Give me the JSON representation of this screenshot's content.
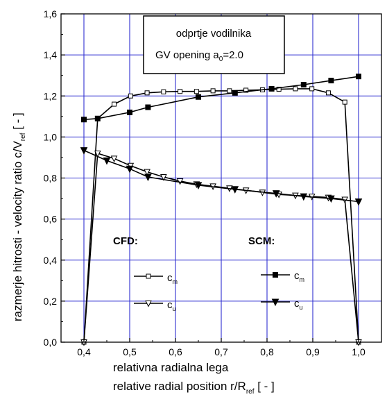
{
  "chart_data": {
    "type": "line",
    "title": "",
    "annotation": {
      "line1": "odprtje vodilnika",
      "line2": "GV opening a",
      "line2_sub": "0",
      "line2_tail": "=2.0"
    },
    "xlabel": {
      "line1": "relativna radialna lega",
      "line2": "relative radial position   r/R",
      "line2_sub": "ref",
      "line2_tail": "   [ - ]"
    },
    "ylabel": {
      "main": "razmerje hitrosti - velocity ratio   c/V",
      "sub": "ref",
      "tail": "   [ - ]"
    },
    "xlim": [
      0.35,
      1.05
    ],
    "ylim": [
      0.0,
      1.6
    ],
    "xticks": [
      "0,4",
      "0,5",
      "0,6",
      "0,7",
      "0,8",
      "0,9",
      "1,0"
    ],
    "yticks": [
      "0,0",
      "0,2",
      "0,4",
      "0,6",
      "0,8",
      "1,0",
      "1,2",
      "1,4",
      "1,6"
    ],
    "grid": true,
    "legend": {
      "cfd_title": "CFD:",
      "scm_title": "SCM:",
      "cm_label": "c",
      "cm_sub": "m",
      "cu_label": "c",
      "cu_sub": "u"
    },
    "series": [
      {
        "name": "CFD c_m",
        "marker": "open-square",
        "x": [
          0.4,
          0.43,
          0.466,
          0.502,
          0.538,
          0.574,
          0.61,
          0.646,
          0.682,
          0.718,
          0.754,
          0.79,
          0.826,
          0.862,
          0.898,
          0.934,
          0.97,
          1.0
        ],
        "y": [
          0.0,
          1.09,
          1.16,
          1.2,
          1.215,
          1.22,
          1.222,
          1.222,
          1.225,
          1.225,
          1.228,
          1.23,
          1.233,
          1.235,
          1.235,
          1.215,
          1.17,
          0.0
        ]
      },
      {
        "name": "CFD c_u",
        "marker": "open-triangle-down",
        "x": [
          0.4,
          0.43,
          0.466,
          0.502,
          0.538,
          0.574,
          0.61,
          0.646,
          0.682,
          0.718,
          0.754,
          0.79,
          0.826,
          0.862,
          0.898,
          0.934,
          0.97,
          1.0
        ],
        "y": [
          0.0,
          0.92,
          0.895,
          0.86,
          0.83,
          0.805,
          0.785,
          0.77,
          0.76,
          0.75,
          0.74,
          0.73,
          0.72,
          0.715,
          0.71,
          0.705,
          0.695,
          0.0
        ]
      },
      {
        "name": "SCM c_m",
        "marker": "filled-square",
        "x": [
          0.4,
          0.43,
          0.5,
          0.54,
          0.65,
          0.73,
          0.81,
          0.88,
          0.94,
          1.0
        ],
        "y": [
          1.085,
          1.09,
          1.12,
          1.145,
          1.195,
          1.215,
          1.235,
          1.255,
          1.275,
          1.295
        ]
      },
      {
        "name": "SCM c_u",
        "marker": "filled-triangle-down",
        "x": [
          0.4,
          0.45,
          0.5,
          0.54,
          0.65,
          0.73,
          0.82,
          0.88,
          0.94,
          1.0
        ],
        "y": [
          0.935,
          0.885,
          0.845,
          0.805,
          0.765,
          0.745,
          0.725,
          0.71,
          0.7,
          0.685
        ]
      }
    ]
  }
}
